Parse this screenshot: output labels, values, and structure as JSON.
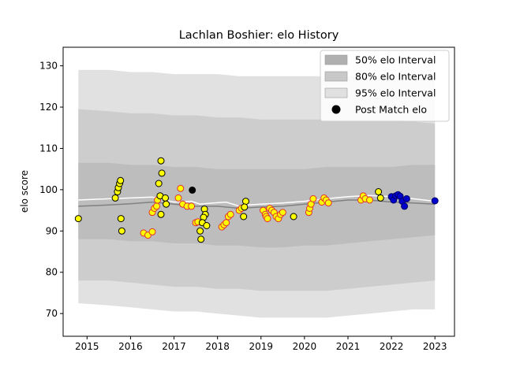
{
  "chart_data": {
    "type": "scatter",
    "title": "Lachlan Boshier: elo History",
    "xlabel": "",
    "ylabel": "elo score",
    "xlim": [
      2014.45,
      2023.45
    ],
    "ylim": [
      64.5,
      134.5
    ],
    "x_ticks": [
      2015,
      2016,
      2017,
      2018,
      2019,
      2020,
      2021,
      2022,
      2023
    ],
    "y_ticks": [
      70,
      80,
      90,
      100,
      110,
      120,
      130
    ],
    "grid": false,
    "legend_position": "top-right",
    "legend": [
      {
        "label": "50% elo Interval",
        "kind": "patch",
        "color": "#b0b0b0"
      },
      {
        "label": "80% elo Interval",
        "kind": "patch",
        "color": "#c8c8c8"
      },
      {
        "label": "95% elo Interval",
        "kind": "patch",
        "color": "#e0e0e0"
      },
      {
        "label": "Post Match elo",
        "kind": "marker",
        "color": "#000000"
      }
    ],
    "colors": {
      "band50": "#bdbdbd",
      "band80": "#cdcdcd",
      "band95": "#e1e1e1",
      "mean_line": "#ffffff",
      "trend_line": "#808080",
      "point_fill_yellow": "#ffff00",
      "point_edge_red": "#e03030",
      "point_fill_blue": "#0000cc",
      "point_fill_black": "#000000"
    },
    "bands": {
      "x": [
        2014.8,
        2015.5,
        2016.0,
        2016.5,
        2017.0,
        2017.5,
        2018.0,
        2018.5,
        2019.0,
        2019.5,
        2020.0,
        2020.5,
        2021.0,
        2021.5,
        2022.0,
        2022.5,
        2023.0
      ],
      "p95_upper": [
        129,
        129,
        128.5,
        128.5,
        128,
        128,
        128,
        127.5,
        127.5,
        127.5,
        127.5,
        127.5,
        127.5,
        127.5,
        127.5,
        127.5,
        127
      ],
      "p95_lower": [
        72.5,
        72,
        71.5,
        71,
        70.5,
        70.5,
        70,
        69.5,
        69,
        69,
        69,
        69,
        69.5,
        70,
        70.5,
        71,
        71
      ],
      "p80_upper": [
        119.5,
        119,
        118.5,
        118.5,
        118,
        118,
        117.5,
        117.5,
        117,
        117,
        117,
        117,
        117,
        117,
        117,
        116.5,
        116
      ],
      "p80_lower": [
        78,
        78,
        77.5,
        77,
        76.5,
        76.5,
        76,
        76,
        75.5,
        75.5,
        75.5,
        75.5,
        76,
        76.5,
        77,
        77.5,
        78
      ],
      "p50_upper": [
        106.5,
        106.5,
        106,
        106,
        105.5,
        105.5,
        105,
        105,
        105,
        105,
        105,
        105.5,
        105.5,
        105.5,
        105.5,
        106,
        106
      ],
      "p50_lower": [
        88,
        88,
        87.5,
        87.5,
        87,
        87,
        86.5,
        86.5,
        86,
        86,
        86.5,
        86.5,
        87,
        87.5,
        88,
        88.5,
        89
      ]
    },
    "mean_line": {
      "x": [
        2014.8,
        2015.5,
        2016.0,
        2016.5,
        2016.8,
        2017.0,
        2017.4,
        2017.6,
        2017.9,
        2018.2,
        2018.5,
        2018.7,
        2019.0,
        2019.5,
        2020.0,
        2020.5,
        2021.0,
        2021.5,
        2022.0,
        2022.5,
        2023.0
      ],
      "y": [
        97.5,
        97.8,
        98,
        98.2,
        97.5,
        97,
        97.2,
        96.5,
        96.8,
        97,
        96,
        96.3,
        96.5,
        96.8,
        97.2,
        97.8,
        98.3,
        98.6,
        98.3,
        97.8,
        97.2
      ]
    },
    "trend_line": {
      "x": [
        2014.8,
        2015.5,
        2016.0,
        2016.5,
        2017.0,
        2017.5,
        2018.0,
        2018.5,
        2019.0,
        2019.5,
        2020.0,
        2020.5,
        2021.0,
        2021.5,
        2022.0,
        2022.5,
        2023.0
      ],
      "y": [
        96,
        96.3,
        96.6,
        97,
        96.5,
        96,
        96,
        95.5,
        95.8,
        96,
        96.5,
        97,
        97.5,
        97.5,
        97,
        96.8,
        96.5
      ]
    },
    "points": {
      "yellow": [
        [
          2014.8,
          93
        ],
        [
          2015.65,
          98
        ],
        [
          2015.7,
          99.5
        ],
        [
          2015.72,
          100.5
        ],
        [
          2015.75,
          101.5
        ],
        [
          2015.77,
          102.2
        ],
        [
          2015.78,
          93
        ],
        [
          2015.8,
          90
        ],
        [
          2016.7,
          107
        ],
        [
          2016.72,
          104
        ],
        [
          2016.65,
          101.5
        ],
        [
          2016.68,
          98.5
        ],
        [
          2016.8,
          98
        ],
        [
          2016.82,
          96.5
        ],
        [
          2016.7,
          94
        ],
        [
          2017.7,
          95.3
        ],
        [
          2017.72,
          94
        ],
        [
          2017.68,
          93.3
        ],
        [
          2017.65,
          92
        ],
        [
          2017.75,
          91.3
        ],
        [
          2017.6,
          90
        ],
        [
          2017.62,
          88
        ],
        [
          2018.65,
          97.2
        ],
        [
          2018.62,
          95.8
        ],
        [
          2018.6,
          93.5
        ],
        [
          2019.75,
          93.5
        ],
        [
          2021.7,
          99.5
        ],
        [
          2021.75,
          98
        ]
      ],
      "red_edged": [
        [
          2016.3,
          89.5
        ],
        [
          2016.4,
          89
        ],
        [
          2016.5,
          89.8
        ],
        [
          2016.5,
          94.5
        ],
        [
          2016.55,
          95.5
        ],
        [
          2016.6,
          96
        ],
        [
          2016.62,
          97.5
        ],
        [
          2017.1,
          98
        ],
        [
          2017.15,
          100.3
        ],
        [
          2017.2,
          96.5
        ],
        [
          2017.3,
          96
        ],
        [
          2017.4,
          96
        ],
        [
          2017.5,
          92
        ],
        [
          2017.55,
          92.2
        ],
        [
          2018.1,
          91
        ],
        [
          2018.15,
          91.5
        ],
        [
          2018.2,
          92
        ],
        [
          2018.25,
          93.5
        ],
        [
          2018.3,
          94
        ],
        [
          2018.5,
          95
        ],
        [
          2018.55,
          95.5
        ],
        [
          2019.05,
          95
        ],
        [
          2019.1,
          94
        ],
        [
          2019.12,
          93.5
        ],
        [
          2019.15,
          93
        ],
        [
          2019.2,
          95.5
        ],
        [
          2019.25,
          95
        ],
        [
          2019.3,
          94.5
        ],
        [
          2019.35,
          93.5
        ],
        [
          2019.4,
          93
        ],
        [
          2019.45,
          94
        ],
        [
          2019.5,
          94.5
        ],
        [
          2020.1,
          94.5
        ],
        [
          2020.12,
          95.5
        ],
        [
          2020.15,
          96.5
        ],
        [
          2020.2,
          97.8
        ],
        [
          2020.4,
          97
        ],
        [
          2020.45,
          98
        ],
        [
          2020.5,
          97.5
        ],
        [
          2020.55,
          96.8
        ],
        [
          2021.3,
          97.5
        ],
        [
          2021.35,
          98.5
        ],
        [
          2021.4,
          97.8
        ],
        [
          2021.5,
          97.5
        ]
      ],
      "black": [
        [
          2017.42,
          99.9
        ]
      ],
      "blue": [
        [
          2022.0,
          98.3
        ],
        [
          2022.05,
          97.5
        ],
        [
          2022.1,
          98.5
        ],
        [
          2022.15,
          98.8
        ],
        [
          2022.2,
          98.4
        ],
        [
          2022.25,
          97.2
        ],
        [
          2022.3,
          96
        ],
        [
          2022.35,
          97.8
        ],
        [
          2023.0,
          97.3
        ]
      ]
    }
  }
}
